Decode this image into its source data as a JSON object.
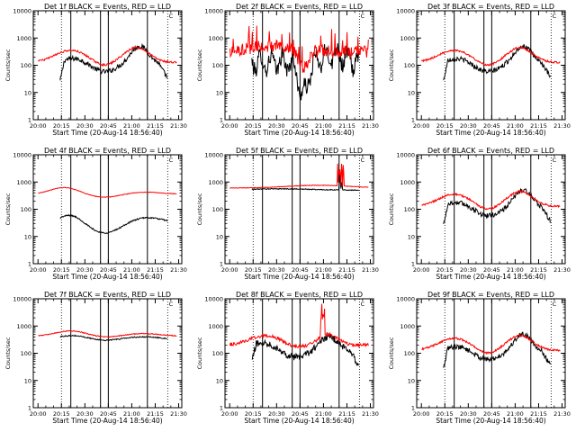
{
  "chart_data": [
    {
      "type": "line",
      "title": "Det 1f BLACK = Events, RED = LLD",
      "xlabel": "Start Time (20-Aug-14 18:56:40)",
      "ylabel": "Counts/sec",
      "ylim": [
        1,
        10000
      ],
      "yscale": "log",
      "xticks": [
        "20:00",
        "20:15",
        "20:30",
        "20:45",
        "21:00",
        "21:15",
        "21:30"
      ],
      "yticks": [
        "1",
        "10",
        "100",
        "1000",
        "10000"
      ],
      "marker_label": "C",
      "series": [
        {
          "color": "#000000"
        },
        {
          "color": "#ff0000"
        }
      ],
      "style": "lobe"
    },
    {
      "type": "line",
      "title": "Det 2f BLACK = Events, RED = LLD",
      "xlabel": "Start Time (20-Aug-14 18:56:40)",
      "ylabel": "Counts/sec",
      "ylim": [
        1,
        10000
      ],
      "yscale": "log",
      "xticks": [
        "20:00",
        "20:15",
        "20:30",
        "20:45",
        "21:00",
        "21:15",
        "21:30"
      ],
      "yticks": [
        "1",
        "10",
        "100",
        "1000",
        "10000"
      ],
      "marker_label": "C",
      "series": [
        {
          "color": "#000000"
        },
        {
          "color": "#ff0000"
        }
      ],
      "style": "noisy"
    },
    {
      "type": "line",
      "title": "Det 3f BLACK = Events, RED = LLD",
      "xlabel": "Start Time (20-Aug-14 18:56:40)",
      "ylabel": "Counts/sec",
      "ylim": [
        1,
        10000
      ],
      "yscale": "log",
      "xticks": [
        "20:00",
        "20:15",
        "20:30",
        "20:45",
        "21:00",
        "21:15",
        "21:30"
      ],
      "yticks": [
        "1",
        "10",
        "100",
        "1000",
        "10000"
      ],
      "marker_label": "C",
      "series": [
        {
          "color": "#000000"
        },
        {
          "color": "#ff0000"
        }
      ],
      "style": "lobe"
    },
    {
      "type": "line",
      "title": "Det 4f BLACK = Events, RED = LLD",
      "xlabel": "Start Time (20-Aug-14 18:56:40)",
      "ylabel": "Counts/sec",
      "ylim": [
        1,
        10000
      ],
      "yscale": "log",
      "xticks": [
        "20:00",
        "20:15",
        "20:30",
        "20:45",
        "21:00",
        "21:15",
        "21:30"
      ],
      "yticks": [
        "1",
        "10",
        "100",
        "1000",
        "10000"
      ],
      "marker_label": "C",
      "series": [
        {
          "color": "#000000"
        },
        {
          "color": "#ff0000"
        }
      ],
      "style": "wave"
    },
    {
      "type": "line",
      "title": "Det 5f BLACK = Events, RED = LLD",
      "xlabel": "Start Time (20-Aug-14 18:56:40)",
      "ylabel": "Counts/sec",
      "ylim": [
        1,
        10000
      ],
      "yscale": "log",
      "xticks": [
        "20:00",
        "20:15",
        "20:30",
        "20:45",
        "21:00",
        "21:15",
        "21:30"
      ],
      "yticks": [
        "1",
        "10",
        "100",
        "1000",
        "10000"
      ],
      "marker_label": "C",
      "series": [
        {
          "color": "#000000"
        },
        {
          "color": "#ff0000"
        }
      ],
      "style": "flat"
    },
    {
      "type": "line",
      "title": "Det 6f BLACK = Events, RED = LLD",
      "xlabel": "Start Time (20-Aug-14 18:56:40)",
      "ylabel": "Counts/sec",
      "ylim": [
        1,
        10000
      ],
      "yscale": "log",
      "xticks": [
        "20:00",
        "20:15",
        "20:30",
        "20:45",
        "21:00",
        "21:15",
        "21:30"
      ],
      "yticks": [
        "1",
        "10",
        "100",
        "1000",
        "10000"
      ],
      "marker_label": "C",
      "series": [
        {
          "color": "#000000"
        },
        {
          "color": "#ff0000"
        }
      ],
      "style": "lobe"
    },
    {
      "type": "line",
      "title": "Det 7f BLACK = Events, RED = LLD",
      "xlabel": "Start Time (20-Aug-14 18:56:40)",
      "ylabel": "Counts/sec",
      "ylim": [
        1,
        10000
      ],
      "yscale": "log",
      "xticks": [
        "20:00",
        "20:15",
        "20:30",
        "20:45",
        "21:00",
        "21:15",
        "21:30"
      ],
      "yticks": [
        "1",
        "10",
        "100",
        "1000",
        "10000"
      ],
      "marker_label": "C",
      "series": [
        {
          "color": "#000000"
        },
        {
          "color": "#ff0000"
        }
      ],
      "style": "wave7"
    },
    {
      "type": "line",
      "title": "Det 8f BLACK = Events, RED = LLD",
      "xlabel": "Start Time (20-Aug-14 18:56:40)",
      "ylabel": "Counts/sec",
      "ylim": [
        1,
        10000
      ],
      "yscale": "log",
      "xticks": [
        "20:00",
        "20:15",
        "20:30",
        "20:45",
        "21:00",
        "21:15",
        "21:30"
      ],
      "yticks": [
        "1",
        "10",
        "100",
        "1000",
        "10000"
      ],
      "marker_label": "C",
      "series": [
        {
          "color": "#000000"
        },
        {
          "color": "#ff0000"
        }
      ],
      "style": "spike"
    },
    {
      "type": "line",
      "title": "Det 9f BLACK = Events, RED = LLD",
      "xlabel": "Start Time (20-Aug-14 18:56:40)",
      "ylabel": "Counts/sec",
      "ylim": [
        1,
        10000
      ],
      "yscale": "log",
      "xticks": [
        "20:00",
        "20:15",
        "20:30",
        "20:45",
        "21:00",
        "21:15",
        "21:30"
      ],
      "yticks": [
        "1",
        "10",
        "100",
        "1000",
        "10000"
      ],
      "marker_label": "C",
      "series": [
        {
          "color": "#000000"
        },
        {
          "color": "#ff0000"
        }
      ],
      "style": "lobe"
    }
  ],
  "time_range_min": [
    0,
    95
  ],
  "dotted_marker_times_min": [
    18,
    86
  ],
  "solid_marker_times_min": [
    24,
    43,
    48,
    73
  ]
}
